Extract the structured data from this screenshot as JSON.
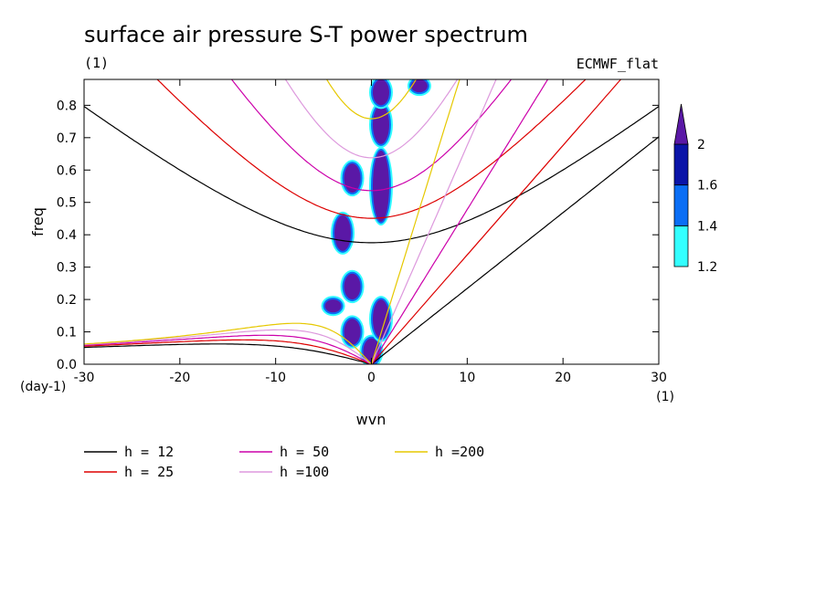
{
  "chart_data": {
    "type": "heatmap",
    "title": "surface air pressure S-T power spectrum",
    "subtitle_left": "(1)",
    "subtitle_right": "ECMWF_flat",
    "xlabel": "wvn",
    "ylabel": "freq",
    "x_unit": "(1)",
    "y_unit": "(day-1)",
    "xlim": [
      -30,
      30
    ],
    "ylim": [
      0,
      0.88
    ],
    "xticks": [
      -30,
      -20,
      -10,
      0,
      10,
      20,
      30
    ],
    "xtick_labels": [
      "-30",
      "-20",
      "-10",
      "0",
      "10",
      "20",
      "30"
    ],
    "yticks": [
      0,
      0.1,
      0.2,
      0.3,
      0.4,
      0.5,
      0.6,
      0.7,
      0.8
    ],
    "ytick_labels": [
      "0.0",
      "0.1",
      "0.2",
      "0.3",
      "0.4",
      "0.5",
      "0.6",
      "0.7",
      "0.8"
    ],
    "colorbar": {
      "levels": [
        1.2,
        1.4,
        1.6,
        2
      ],
      "labels": [
        "1.2",
        "1.4",
        "1.6",
        "2"
      ],
      "colors": [
        "#33ffff",
        "#0a6ef5",
        "#0a14a8",
        "#5a18a6"
      ]
    },
    "dispersion_curves": [
      {
        "label": "h = 12",
        "h": 12,
        "color": "#000000"
      },
      {
        "label": "h = 25",
        "h": 25,
        "color": "#dd0000"
      },
      {
        "label": "h = 50",
        "h": 50,
        "color": "#cc00aa"
      },
      {
        "label": "h =100",
        "h": 100,
        "color": "#dd99dd"
      },
      {
        "label": "h =200",
        "h": 200,
        "color": "#e6c800"
      }
    ],
    "high_power_regions": [
      {
        "wvn": 0,
        "freq_range": [
          0.0,
          0.08
        ],
        "level": 2
      },
      {
        "wvn": 1,
        "freq_range": [
          0.08,
          0.2
        ],
        "level": 2
      },
      {
        "wvn": -2,
        "freq_range": [
          0.06,
          0.14
        ],
        "level": 2
      },
      {
        "wvn": -4,
        "freq_range": [
          0.16,
          0.2
        ],
        "level": 2
      },
      {
        "wvn": -2,
        "freq_range": [
          0.2,
          0.28
        ],
        "level": 2
      },
      {
        "wvn": -3,
        "freq_range": [
          0.35,
          0.46
        ],
        "level": 2
      },
      {
        "wvn": 1,
        "freq_range": [
          0.44,
          0.66
        ],
        "level": 2
      },
      {
        "wvn": -2,
        "freq_range": [
          0.53,
          0.62
        ],
        "level": 2
      },
      {
        "wvn": 1,
        "freq_range": [
          0.68,
          0.8
        ],
        "level": 2
      },
      {
        "wvn": 1,
        "freq_range": [
          0.8,
          0.88
        ],
        "level": 2
      },
      {
        "wvn": 5,
        "freq_range": [
          0.84,
          0.88
        ],
        "level": 2
      }
    ]
  }
}
